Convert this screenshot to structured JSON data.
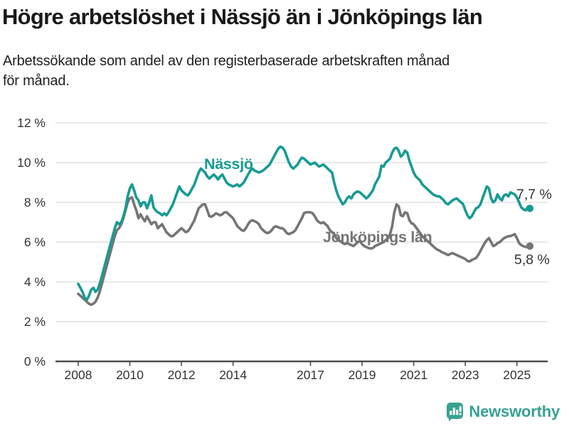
{
  "header": {
    "title": "Högre arbetslöshet i Nässjö än i Jönköpings län",
    "subtitle": "Arbetssökande som andel av den registerbaserade arbetskraften månad\nför månad."
  },
  "chart_data": {
    "type": "line",
    "unit": "%",
    "frequency": "monthly",
    "x_start": "2008-01",
    "x_end": "2025-07",
    "ylim": [
      0,
      12
    ],
    "grid": true,
    "axis_color": "#4d4d4d",
    "gridline_color": "#d9d9d9",
    "tick_label_color": "#333333",
    "yticks": [
      {
        "value": 0,
        "label": "0 %"
      },
      {
        "value": 2,
        "label": "2 %"
      },
      {
        "value": 4,
        "label": "4 %"
      },
      {
        "value": 6,
        "label": "6 %"
      },
      {
        "value": 8,
        "label": "8 %"
      },
      {
        "value": 10,
        "label": "10 %"
      },
      {
        "value": 12,
        "label": "12 %"
      }
    ],
    "xticks": [
      {
        "year": 2008,
        "label": "2008"
      },
      {
        "year": 2010,
        "label": "2010"
      },
      {
        "year": 2012,
        "label": "2012"
      },
      {
        "year": 2014,
        "label": "2014"
      },
      {
        "year": 2017,
        "label": "2017"
      },
      {
        "year": 2019,
        "label": "2019"
      },
      {
        "year": 2021,
        "label": "2021"
      },
      {
        "year": 2023,
        "label": "2023"
      },
      {
        "year": 2025,
        "label": "2025"
      }
    ],
    "series": [
      {
        "name": "Jönköpings län",
        "color": "#757575",
        "end_label": "5,8 %",
        "latest_value": 5.8,
        "values": [
          3.4,
          3.3,
          3.2,
          3.1,
          3.0,
          2.9,
          2.85,
          2.9,
          3.0,
          3.2,
          3.5,
          3.9,
          4.3,
          4.7,
          5.1,
          5.5,
          5.9,
          6.3,
          6.6,
          6.7,
          6.9,
          7.2,
          7.6,
          8.0,
          8.2,
          8.25,
          7.9,
          7.6,
          7.2,
          7.4,
          7.2,
          7.05,
          7.3,
          7.1,
          6.9,
          7.0,
          7.0,
          6.7,
          6.8,
          6.9,
          6.7,
          6.5,
          6.4,
          6.3,
          6.3,
          6.4,
          6.5,
          6.6,
          6.7,
          6.6,
          6.5,
          6.55,
          6.7,
          6.9,
          7.1,
          7.4,
          7.7,
          7.8,
          7.9,
          7.9,
          7.6,
          7.3,
          7.28,
          7.35,
          7.45,
          7.4,
          7.35,
          7.4,
          7.5,
          7.5,
          7.4,
          7.3,
          7.2,
          7.0,
          6.8,
          6.7,
          6.6,
          6.57,
          6.7,
          6.9,
          7.05,
          7.1,
          7.05,
          7.0,
          6.9,
          6.7,
          6.6,
          6.5,
          6.45,
          6.5,
          6.6,
          6.75,
          6.8,
          6.75,
          6.7,
          6.7,
          6.6,
          6.45,
          6.4,
          6.45,
          6.5,
          6.6,
          6.8,
          7.0,
          7.2,
          7.45,
          7.5,
          7.5,
          7.5,
          7.45,
          7.3,
          7.1,
          7.0,
          6.95,
          7.0,
          6.9,
          6.8,
          6.6,
          6.5,
          6.4,
          6.2,
          6.1,
          6.04,
          5.95,
          5.9,
          5.96,
          5.9,
          5.85,
          5.8,
          5.9,
          6.0,
          6.05,
          5.9,
          5.8,
          5.75,
          5.7,
          5.68,
          5.7,
          5.8,
          5.85,
          5.9,
          5.95,
          6.0,
          6.1,
          6.2,
          6.4,
          6.8,
          7.5,
          7.9,
          7.8,
          7.35,
          7.3,
          7.5,
          7.45,
          7.1,
          6.95,
          6.9,
          6.75,
          6.6,
          6.45,
          6.3,
          6.2,
          6.1,
          6.0,
          5.9,
          5.8,
          5.7,
          5.62,
          5.57,
          5.5,
          5.45,
          5.4,
          5.35,
          5.4,
          5.45,
          5.4,
          5.35,
          5.3,
          5.25,
          5.2,
          5.15,
          5.05,
          5.03,
          5.1,
          5.15,
          5.2,
          5.35,
          5.55,
          5.75,
          5.95,
          6.1,
          6.2,
          6.0,
          5.8,
          5.85,
          5.95,
          6.0,
          6.1,
          6.2,
          6.25,
          6.3,
          6.3,
          6.35,
          6.4,
          6.2,
          5.95,
          5.85,
          5.8,
          5.75,
          5.78,
          5.8
        ]
      },
      {
        "name": "Nässjö",
        "color": "#179b93",
        "end_label": "7,7 %",
        "latest_value": 7.7,
        "values": [
          3.9,
          3.7,
          3.5,
          3.2,
          3.1,
          3.3,
          3.6,
          3.7,
          3.5,
          3.6,
          3.9,
          4.3,
          4.7,
          5.1,
          5.5,
          5.9,
          6.3,
          6.7,
          7.0,
          6.9,
          7.0,
          7.3,
          7.7,
          8.3,
          8.7,
          8.9,
          8.6,
          8.25,
          8.1,
          7.8,
          8.0,
          8.0,
          7.7,
          8.0,
          8.35,
          7.75,
          7.6,
          7.5,
          7.45,
          7.35,
          7.45,
          7.35,
          7.5,
          7.7,
          7.9,
          8.2,
          8.5,
          8.8,
          8.6,
          8.5,
          8.4,
          8.35,
          8.5,
          8.7,
          8.9,
          9.2,
          9.5,
          9.7,
          9.6,
          9.5,
          9.3,
          9.2,
          9.3,
          9.4,
          9.3,
          9.15,
          9.3,
          9.4,
          9.2,
          9.0,
          8.9,
          8.85,
          8.8,
          8.85,
          8.9,
          8.8,
          8.9,
          9.0,
          9.2,
          9.4,
          9.6,
          9.7,
          9.6,
          9.55,
          9.5,
          9.55,
          9.6,
          9.7,
          9.8,
          9.9,
          10.1,
          10.3,
          10.5,
          10.7,
          10.8,
          10.75,
          10.6,
          10.3,
          10.0,
          9.8,
          9.7,
          9.8,
          9.9,
          10.1,
          10.25,
          10.2,
          10.1,
          10.0,
          9.9,
          9.95,
          10.0,
          9.9,
          9.8,
          9.85,
          9.9,
          9.8,
          9.7,
          9.6,
          9.5,
          9.0,
          8.6,
          8.3,
          8.1,
          7.9,
          8.0,
          8.2,
          8.3,
          8.2,
          8.4,
          8.5,
          8.55,
          8.5,
          8.4,
          8.3,
          8.2,
          8.3,
          8.45,
          8.6,
          8.9,
          9.1,
          9.3,
          9.85,
          9.8,
          10.0,
          10.1,
          10.2,
          10.5,
          10.7,
          10.75,
          10.6,
          10.3,
          10.4,
          10.6,
          10.5,
          10.1,
          9.8,
          9.5,
          9.3,
          9.2,
          9.1,
          8.9,
          8.8,
          8.7,
          8.6,
          8.5,
          8.4,
          8.35,
          8.3,
          8.3,
          8.2,
          8.1,
          7.95,
          7.9,
          8.0,
          8.1,
          8.15,
          8.2,
          8.1,
          8.0,
          7.9,
          7.6,
          7.35,
          7.2,
          7.3,
          7.5,
          7.7,
          7.75,
          7.9,
          8.2,
          8.5,
          8.8,
          8.7,
          8.2,
          8.0,
          8.1,
          8.4,
          8.2,
          8.1,
          8.35,
          8.4,
          8.3,
          8.5,
          8.45,
          8.4,
          8.25,
          8.0,
          7.75,
          7.65,
          7.6,
          7.75,
          7.7
        ]
      }
    ]
  },
  "footer": {
    "brand": "Newsworthy",
    "brand_color": "#38a293"
  }
}
